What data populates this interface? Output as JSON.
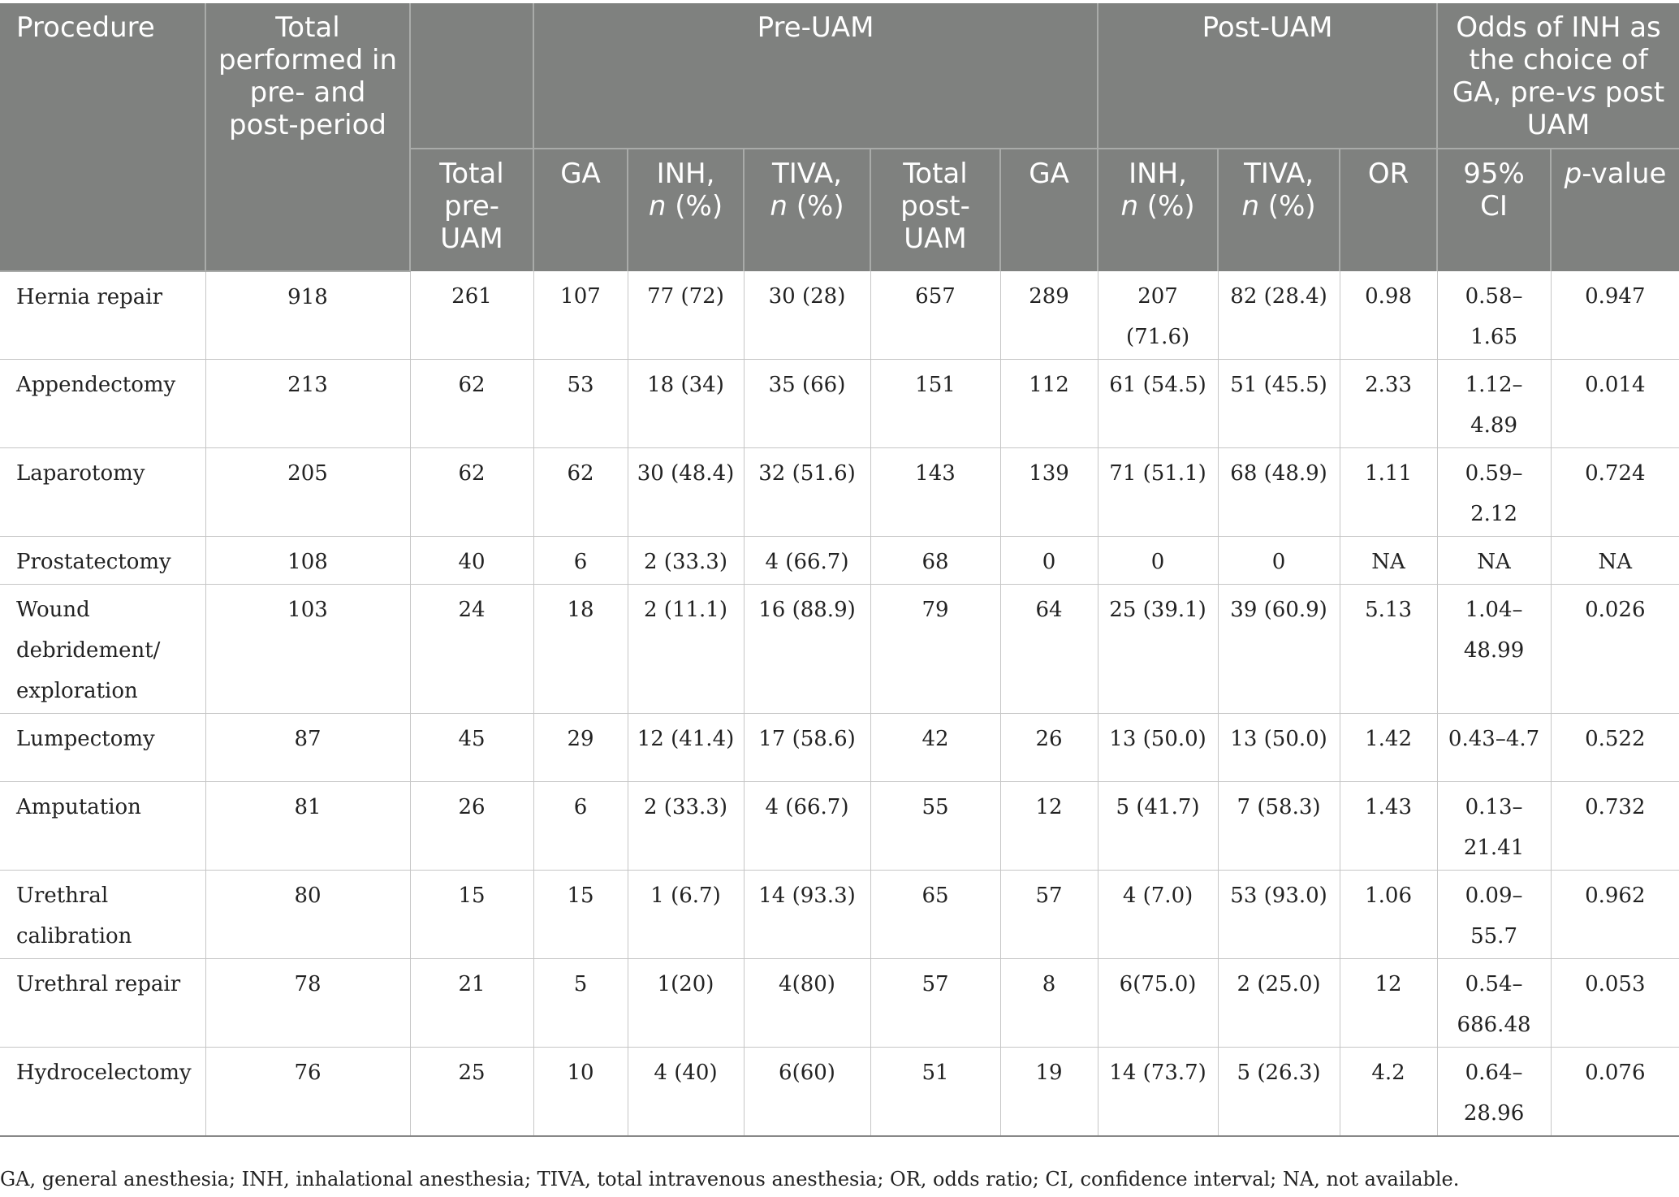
{
  "header": {
    "procedure": "Procedure",
    "total_performed": "Total performed in pre- and post-period",
    "pre_group": "Pre-UAM",
    "post_group": "Post-UAM",
    "odds_group_prefix": "Odds of INH as the choice of GA, pre-",
    "odds_group_vs": "vs",
    "odds_group_suffix": " post UAM",
    "total_pre": "Total pre-UAM",
    "ga": "GA",
    "inh": "INH,",
    "tiva": "TIVA,",
    "n_italic": "n",
    "n_suffix": " (%)",
    "total_post": "Total post-UAM",
    "or": "OR",
    "ci": "95% CI",
    "p_italic": "p",
    "p_suffix": "-value"
  },
  "rows": [
    {
      "procedure": "Hernia repair",
      "total": "918",
      "total_pre": "261",
      "pre_ga": "107",
      "pre_inh": "77 (72)",
      "pre_tiva": "30 (28)",
      "total_post": "657",
      "post_ga": "289",
      "post_inh": "207 (71.6)",
      "post_tiva": "82 (28.4)",
      "or": "0.98",
      "ci": "0.58–1.65",
      "p": "0.947"
    },
    {
      "procedure": "Appendectomy",
      "total": "213",
      "total_pre": "62",
      "pre_ga": "53",
      "pre_inh": "18 (34)",
      "pre_tiva": "35 (66)",
      "total_post": "151",
      "post_ga": "112",
      "post_inh": "61 (54.5)",
      "post_tiva": "51 (45.5)",
      "or": "2.33",
      "ci": "1.12–4.89",
      "p": "0.014"
    },
    {
      "procedure": "Laparotomy",
      "total": "205",
      "total_pre": "62",
      "pre_ga": "62",
      "pre_inh": "30 (48.4)",
      "pre_tiva": "32 (51.6)",
      "total_post": "143",
      "post_ga": "139",
      "post_inh": "71 (51.1)",
      "post_tiva": "68 (48.9)",
      "or": "1.11",
      "ci": "0.59–2.12",
      "p": "0.724"
    },
    {
      "procedure": "Prostatectomy",
      "total": "108",
      "total_pre": "40",
      "pre_ga": "6",
      "pre_inh": "2 (33.3)",
      "pre_tiva": "4 (66.7)",
      "total_post": "68",
      "post_ga": "0",
      "post_inh": "0",
      "post_tiva": "0",
      "or": "NA",
      "ci": "NA",
      "p": "NA"
    },
    {
      "procedure": "Wound debridement/ exploration",
      "total": "103",
      "total_pre": "24",
      "pre_ga": "18",
      "pre_inh": "2 (11.1)",
      "pre_tiva": "16 (88.9)",
      "total_post": "79",
      "post_ga": "64",
      "post_inh": "25 (39.1)",
      "post_tiva": "39 (60.9)",
      "or": "5.13",
      "ci": "1.04–48.99",
      "p": "0.026"
    },
    {
      "procedure": "Lumpectomy",
      "total": "87",
      "total_pre": "45",
      "pre_ga": "29",
      "pre_inh": "12 (41.4)",
      "pre_tiva": "17 (58.6)",
      "total_post": "42",
      "post_ga": "26",
      "post_inh": "13 (50.0)",
      "post_tiva": "13 (50.0)",
      "or": "1.42",
      "ci": "0.43–4.7",
      "p": "0.522"
    },
    {
      "procedure": "Amputation",
      "total": "81",
      "total_pre": "26",
      "pre_ga": "6",
      "pre_inh": "2 (33.3)",
      "pre_tiva": "4 (66.7)",
      "total_post": "55",
      "post_ga": "12",
      "post_inh": "5 (41.7)",
      "post_tiva": "7 (58.3)",
      "or": "1.43",
      "ci": "0.13–21.41",
      "p": "0.732"
    },
    {
      "procedure": "Urethral calibration",
      "total": "80",
      "total_pre": "15",
      "pre_ga": "15",
      "pre_inh": "1 (6.7)",
      "pre_tiva": "14 (93.3)",
      "total_post": "65",
      "post_ga": "57",
      "post_inh": "4 (7.0)",
      "post_tiva": "53 (93.0)",
      "or": "1.06",
      "ci": "0.09–55.7",
      "p": "0.962"
    },
    {
      "procedure": "Urethral repair",
      "total": "78",
      "total_pre": "21",
      "pre_ga": "5",
      "pre_inh": "1(20)",
      "pre_tiva": "4(80)",
      "total_post": "57",
      "post_ga": "8",
      "post_inh": "6(75.0)",
      "post_tiva": "2 (25.0)",
      "or": "12",
      "ci": "0.54–686.48",
      "p": "0.053"
    },
    {
      "procedure": "Hydrocelectomy",
      "total": "76",
      "total_pre": "25",
      "pre_ga": "10",
      "pre_inh": "4 (40)",
      "pre_tiva": "6(60)",
      "total_post": "51",
      "post_ga": "19",
      "post_inh": "14 (73.7)",
      "post_tiva": "5 (26.3)",
      "or": "4.2",
      "ci": "0.64–28.96",
      "p": "0.076"
    }
  ],
  "footnote": "GA, general anesthesia; INH, inhalational anesthesia; TIVA, total intravenous anesthesia; OR, odds ratio; CI, confidence interval; NA, not available."
}
